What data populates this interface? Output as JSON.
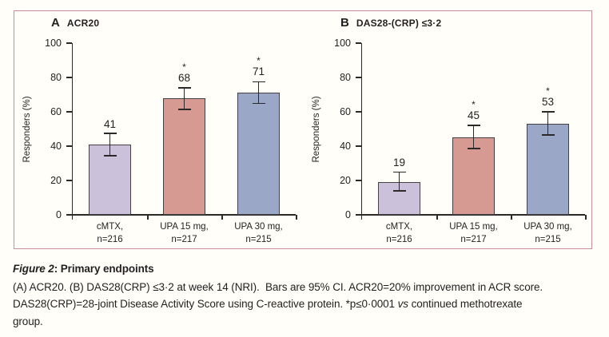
{
  "figure": {
    "frame_border_color": "#c98da0",
    "background_color": "#fffef8",
    "text_color": "#231f20"
  },
  "caption": {
    "title_prefix_italic": "Figure 2",
    "title_rest": ": Primary endpoints",
    "lines": [
      {
        "segments": [
          {
            "text": "(A) ACR20. (B) DAS28(CRP) ≤3·2 at week 14 (NRI).  Bars are 95% CI. ACR20=20% improvement in ACR score.",
            "italic": false
          }
        ]
      },
      {
        "segments": [
          {
            "text": "DAS28(CRP)=28-joint Disease Activity Score using C-reactive protein. *p≤0·0001 ",
            "italic": false
          },
          {
            "text": "vs",
            "italic": true
          },
          {
            "text": " continued methotrexate",
            "italic": false
          }
        ]
      },
      {
        "segments": [
          {
            "text": "group.",
            "italic": false
          }
        ]
      }
    ]
  },
  "chart_data": [
    {
      "type": "bar",
      "panel_letter": "A",
      "title": "ACR20",
      "ylabel": "Responders (%)",
      "ylim": [
        0,
        100
      ],
      "yticks": [
        0,
        20,
        40,
        60,
        80,
        100
      ],
      "categories": [
        [
          "cMTX,",
          "n=216"
        ],
        [
          "UPA 15 mg,",
          "n=217"
        ],
        [
          "UPA 30 mg,",
          "n=215"
        ]
      ],
      "values": [
        41,
        68,
        71
      ],
      "ci_low": [
        34.5,
        61.5,
        65
      ],
      "ci_high": [
        47.5,
        74,
        77.5
      ],
      "significant": [
        false,
        true,
        true
      ],
      "sig_marker": "*",
      "bar_colors": [
        "#ccc1da",
        "#d69a92",
        "#9aa7c6"
      ],
      "grid": false,
      "legend": "none"
    },
    {
      "type": "bar",
      "panel_letter": "B",
      "title": "DAS28-(CRP) ≤3·2",
      "ylabel": "Responders (%)",
      "ylim": [
        0,
        100
      ],
      "yticks": [
        0,
        20,
        40,
        60,
        80,
        100
      ],
      "categories": [
        [
          "cMTX,",
          "n=216"
        ],
        [
          "UPA 15 mg,",
          "n=217"
        ],
        [
          "UPA 30 mg,",
          "n=215"
        ]
      ],
      "values": [
        19,
        45,
        53
      ],
      "ci_low": [
        14,
        38.5,
        46.5
      ],
      "ci_high": [
        25,
        52,
        60
      ],
      "significant": [
        false,
        true,
        true
      ],
      "sig_marker": "*",
      "bar_colors": [
        "#ccc1da",
        "#d69a92",
        "#9aa7c6"
      ],
      "grid": false,
      "legend": "none"
    }
  ]
}
